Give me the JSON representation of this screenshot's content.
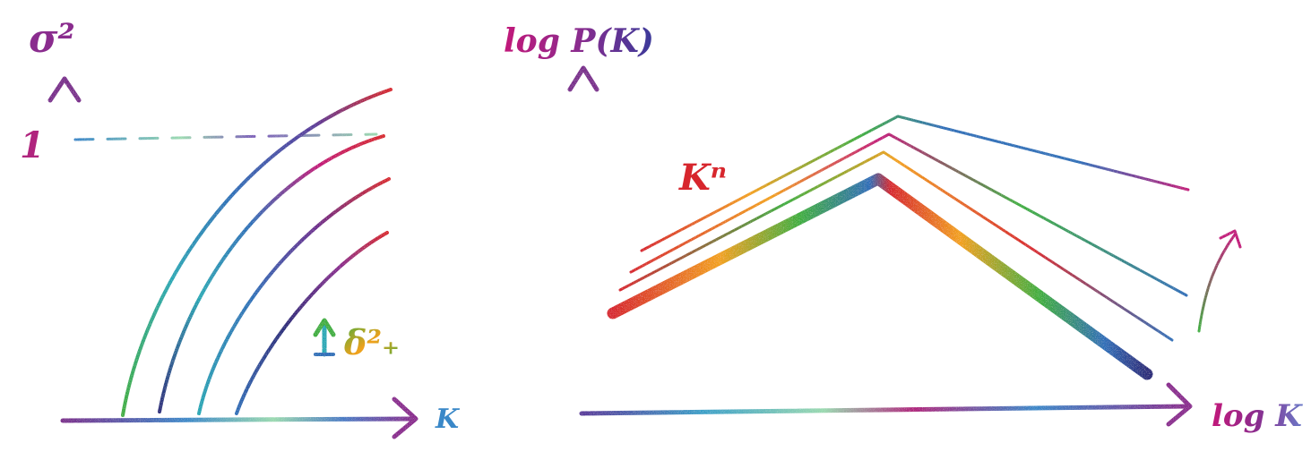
{
  "left_panel": {
    "y_axis_label": "σ²",
    "x_axis_label": "K",
    "reference_value": "1",
    "annotation_arrow": "↑",
    "annotation_label": "δ²₊",
    "curve_count": 4
  },
  "right_panel": {
    "y_axis_label": "log P(K)",
    "x_axis_label": "log K",
    "slope_label": "Kⁿ",
    "curve_count": 4
  },
  "colors": {
    "axis_purple": "#8a2c8e",
    "axis_blue": "#3a88c8",
    "axis_mint": "#9ad9b0",
    "magenta": "#c2187a",
    "red": "#d7262d",
    "orange": "#f2a11b",
    "green": "#3fae3f",
    "teal": "#28a8b5",
    "blue": "#2f6fb8",
    "navy": "#2c2b7a"
  }
}
